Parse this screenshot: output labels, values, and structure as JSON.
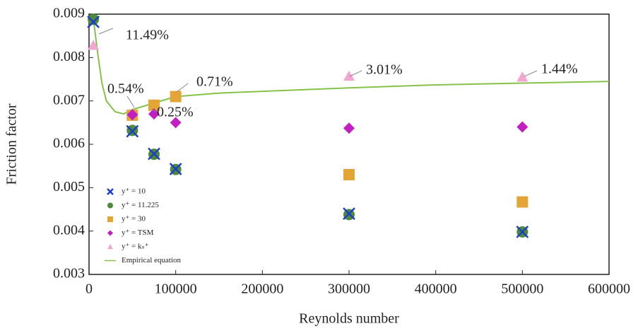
{
  "chart_data": {
    "type": "scatter",
    "x_label": "Reynolds number",
    "y_label": "Friction factor",
    "xlim": [
      0,
      600000
    ],
    "xticks": [
      0,
      100000,
      200000,
      300000,
      400000,
      500000,
      600000
    ],
    "ylim": [
      0.003,
      0.009
    ],
    "yticks": [
      0.003,
      0.004,
      0.005,
      0.006,
      0.007,
      0.008,
      0.009
    ],
    "legend": "lower left",
    "series": [
      {
        "name": "y⁺ = 10",
        "color": "#1c3fc4",
        "marker": "x",
        "x": [
          5000,
          50000,
          75000,
          100000,
          300000,
          500000
        ],
        "values": [
          0.00882,
          0.0063,
          0.00578,
          0.00543,
          0.0044,
          0.00398
        ]
      },
      {
        "name": "y⁺ = 11.225",
        "color": "#4f8a3a",
        "marker": "circle",
        "x": [
          5000,
          50000,
          75000,
          100000,
          300000,
          500000
        ],
        "values": [
          0.00888,
          0.00632,
          0.00577,
          0.00542,
          0.00438,
          0.00398
        ]
      },
      {
        "name": "y⁺ = 30",
        "color": "#e3a535",
        "marker": "square",
        "x": [
          50000,
          75000,
          100000,
          300000,
          500000
        ],
        "values": [
          0.00667,
          0.0069,
          0.0071,
          0.0053,
          0.00467
        ]
      },
      {
        "name": "y⁺ = TSM",
        "color": "#c21fc2",
        "marker": "diamond",
        "x": [
          50000,
          75000,
          100000,
          300000,
          500000
        ],
        "values": [
          0.00668,
          0.0067,
          0.0065,
          0.00637,
          0.0064
        ]
      },
      {
        "name": "y⁺ = kₛ⁺",
        "color": "#f3a6cf",
        "marker": "triangle",
        "x": [
          5000,
          50000,
          75000,
          100000,
          300000,
          500000
        ],
        "values": [
          0.00828,
          0.0067,
          0.00692,
          0.0071,
          0.00757,
          0.00755
        ]
      },
      {
        "name": "Empirical equation",
        "color": "#86c24a",
        "marker": "line",
        "x": [
          5000,
          10000,
          15000,
          20000,
          30000,
          40000,
          50000,
          75000,
          100000,
          150000,
          200000,
          300000,
          400000,
          500000,
          600000
        ],
        "values": [
          0.0089,
          0.0081,
          0.0074,
          0.007,
          0.00675,
          0.0067,
          0.0068,
          0.00695,
          0.0071,
          0.00718,
          0.00722,
          0.0073,
          0.00737,
          0.00741,
          0.00745
        ]
      }
    ],
    "annotations": [
      "11.49%",
      "0.54%",
      "0.71%",
      "0.25%",
      "3.01%",
      "1.44%"
    ]
  }
}
